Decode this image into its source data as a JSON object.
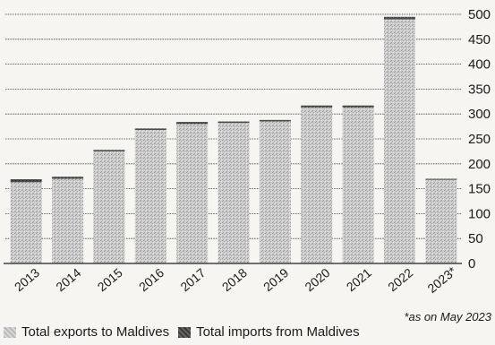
{
  "chart_data": {
    "type": "bar",
    "categories": [
      "2013",
      "2014",
      "2015",
      "2016",
      "2017",
      "2018",
      "2019",
      "2020",
      "2021",
      "2022",
      "2023*"
    ],
    "series": [
      {
        "name": "Total exports to Maldives",
        "values": [
          163,
          170,
          225,
          268,
          280,
          282,
          285,
          313,
          313,
          490,
          168
        ]
      },
      {
        "name": "Total imports from Maldives",
        "values": [
          6,
          4,
          3,
          3,
          4,
          3,
          3,
          4,
          4,
          5,
          2
        ]
      }
    ],
    "yticks": [
      0,
      50,
      100,
      150,
      200,
      250,
      300,
      350,
      400,
      450,
      500
    ],
    "ylim": [
      0,
      500
    ],
    "grid": true,
    "legend_position": "bottom-left",
    "colors": {
      "exports": "#c4c4c4",
      "imports": "#3f3f3f"
    }
  },
  "footnote": "*as on May 2023",
  "legend": {
    "exports_label": "Total exports to Maldives",
    "imports_label": "Total imports from Maldives"
  }
}
